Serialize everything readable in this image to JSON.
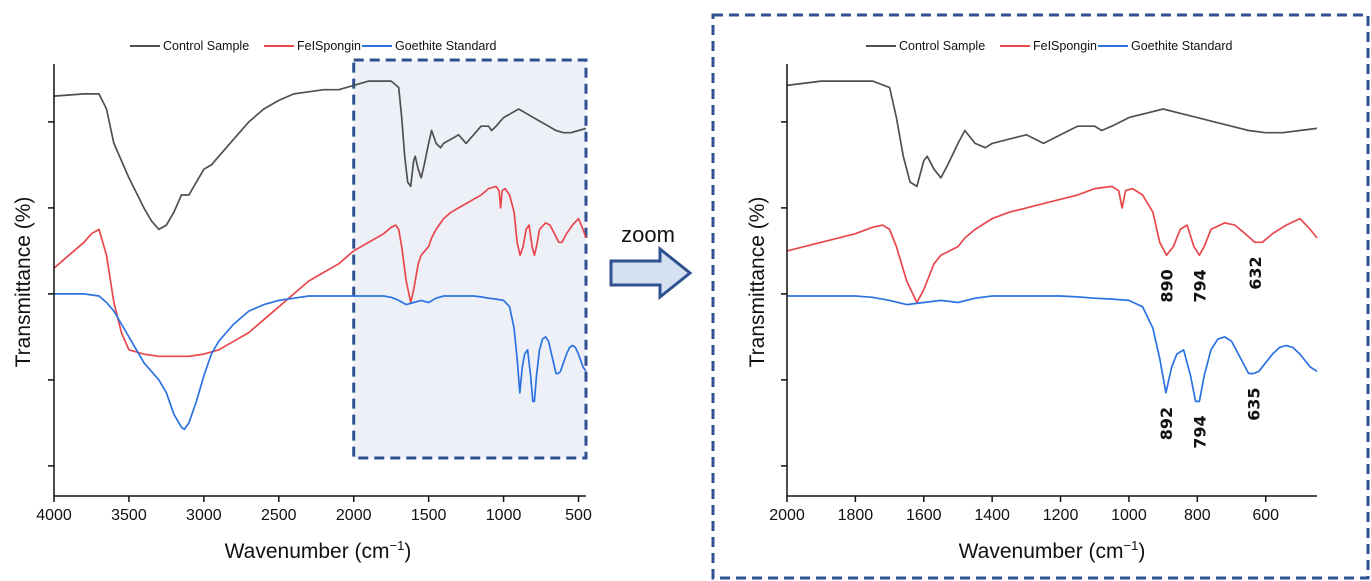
{
  "figure": {
    "zoom_label": "zoom",
    "colors": {
      "control": "#505050",
      "fe_spongin": "#e8474b",
      "goethite": "#2b73e0",
      "frame": "#2f5190",
      "highlight_fill": "#eef0f8",
      "arrow_fill": "#d5e0f1",
      "arrow_stroke": "#2f5190"
    }
  },
  "chart_data": [
    {
      "type": "line",
      "title": "",
      "xlabel": "Wavenumber (cm",
      "xlabel_superscript": "−1",
      "xlabel_close": ")",
      "ylabel": "Transmittance (%)",
      "xlim": [
        4000,
        450
      ],
      "x_reversed": true,
      "y_units": "relative transmittance, arbitrary (offset stacked spectra)",
      "ylim": [
        0,
        1
      ],
      "x_ticks": [
        4000,
        3500,
        3000,
        2500,
        2000,
        1500,
        1000,
        500
      ],
      "x_tick_labels": [
        "4000",
        "3500",
        "3000",
        "2500",
        "2000",
        "1500",
        "1000",
        "500"
      ],
      "y_tick_positions": [
        0.07,
        0.27,
        0.47,
        0.67,
        0.87
      ],
      "grid": false,
      "legend_position": "top",
      "highlight_region": [
        2000,
        450
      ],
      "series": [
        {
          "name": "Control Sample",
          "color_key": "control",
          "points": [
            [
              4000,
              0.93
            ],
            [
              3800,
              0.935
            ],
            [
              3700,
              0.935
            ],
            [
              3650,
              0.9
            ],
            [
              3600,
              0.82
            ],
            [
              3500,
              0.74
            ],
            [
              3400,
              0.67
            ],
            [
              3350,
              0.64
            ],
            [
              3300,
              0.62
            ],
            [
              3250,
              0.63
            ],
            [
              3200,
              0.66
            ],
            [
              3150,
              0.7
            ],
            [
              3100,
              0.7
            ],
            [
              3050,
              0.73
            ],
            [
              3000,
              0.76
            ],
            [
              2950,
              0.77
            ],
            [
              2900,
              0.79
            ],
            [
              2800,
              0.83
            ],
            [
              2700,
              0.87
            ],
            [
              2600,
              0.9
            ],
            [
              2500,
              0.92
            ],
            [
              2400,
              0.935
            ],
            [
              2300,
              0.94
            ],
            [
              2200,
              0.945
            ],
            [
              2100,
              0.945
            ],
            [
              2000,
              0.955
            ],
            [
              1900,
              0.965
            ],
            [
              1800,
              0.965
            ],
            [
              1750,
              0.965
            ],
            [
              1700,
              0.95
            ],
            [
              1680,
              0.88
            ],
            [
              1660,
              0.79
            ],
            [
              1640,
              0.73
            ],
            [
              1620,
              0.72
            ],
            [
              1600,
              0.78
            ],
            [
              1590,
              0.79
            ],
            [
              1570,
              0.76
            ],
            [
              1550,
              0.74
            ],
            [
              1530,
              0.77
            ],
            [
              1500,
              0.82
            ],
            [
              1480,
              0.85
            ],
            [
              1450,
              0.82
            ],
            [
              1420,
              0.81
            ],
            [
              1400,
              0.82
            ],
            [
              1350,
              0.83
            ],
            [
              1300,
              0.84
            ],
            [
              1250,
              0.82
            ],
            [
              1200,
              0.84
            ],
            [
              1150,
              0.86
            ],
            [
              1100,
              0.86
            ],
            [
              1080,
              0.85
            ],
            [
              1050,
              0.86
            ],
            [
              1000,
              0.88
            ],
            [
              950,
              0.89
            ],
            [
              900,
              0.9
            ],
            [
              850,
              0.89
            ],
            [
              800,
              0.88
            ],
            [
              750,
              0.87
            ],
            [
              700,
              0.86
            ],
            [
              650,
              0.85
            ],
            [
              600,
              0.845
            ],
            [
              550,
              0.845
            ],
            [
              500,
              0.85
            ],
            [
              450,
              0.855
            ]
          ]
        },
        {
          "name": "FeISpongin",
          "color_key": "fe_spongin",
          "points": [
            [
              4000,
              0.53
            ],
            [
              3900,
              0.56
            ],
            [
              3800,
              0.59
            ],
            [
              3750,
              0.61
            ],
            [
              3700,
              0.62
            ],
            [
              3650,
              0.56
            ],
            [
              3600,
              0.45
            ],
            [
              3550,
              0.38
            ],
            [
              3500,
              0.34
            ],
            [
              3400,
              0.33
            ],
            [
              3300,
              0.325
            ],
            [
              3200,
              0.325
            ],
            [
              3100,
              0.325
            ],
            [
              3000,
              0.33
            ],
            [
              2900,
              0.34
            ],
            [
              2800,
              0.36
            ],
            [
              2700,
              0.38
            ],
            [
              2600,
              0.41
            ],
            [
              2500,
              0.44
            ],
            [
              2400,
              0.47
            ],
            [
              2300,
              0.5
            ],
            [
              2200,
              0.52
            ],
            [
              2100,
              0.54
            ],
            [
              2000,
              0.57
            ],
            [
              1900,
              0.59
            ],
            [
              1800,
              0.61
            ],
            [
              1750,
              0.625
            ],
            [
              1720,
              0.63
            ],
            [
              1700,
              0.62
            ],
            [
              1680,
              0.58
            ],
            [
              1650,
              0.5
            ],
            [
              1620,
              0.45
            ],
            [
              1600,
              0.48
            ],
            [
              1570,
              0.54
            ],
            [
              1550,
              0.56
            ],
            [
              1500,
              0.58
            ],
            [
              1480,
              0.6
            ],
            [
              1450,
              0.62
            ],
            [
              1400,
              0.645
            ],
            [
              1350,
              0.66
            ],
            [
              1300,
              0.67
            ],
            [
              1250,
              0.68
            ],
            [
              1200,
              0.69
            ],
            [
              1150,
              0.7
            ],
            [
              1100,
              0.715
            ],
            [
              1050,
              0.72
            ],
            [
              1030,
              0.71
            ],
            [
              1020,
              0.67
            ],
            [
              1010,
              0.71
            ],
            [
              990,
              0.715
            ],
            [
              960,
              0.7
            ],
            [
              930,
              0.66
            ],
            [
              910,
              0.59
            ],
            [
              890,
              0.56
            ],
            [
              870,
              0.58
            ],
            [
              850,
              0.62
            ],
            [
              830,
              0.63
            ],
            [
              810,
              0.58
            ],
            [
              794,
              0.56
            ],
            [
              780,
              0.58
            ],
            [
              760,
              0.62
            ],
            [
              720,
              0.635
            ],
            [
              690,
              0.63
            ],
            [
              660,
              0.61
            ],
            [
              632,
              0.59
            ],
            [
              610,
              0.59
            ],
            [
              580,
              0.61
            ],
            [
              540,
              0.63
            ],
            [
              500,
              0.645
            ],
            [
              470,
              0.62
            ],
            [
              450,
              0.6
            ]
          ]
        },
        {
          "name": "Goethite Standard",
          "color_key": "goethite",
          "points": [
            [
              4000,
              0.47
            ],
            [
              3900,
              0.47
            ],
            [
              3800,
              0.47
            ],
            [
              3700,
              0.465
            ],
            [
              3650,
              0.45
            ],
            [
              3600,
              0.43
            ],
            [
              3550,
              0.4
            ],
            [
              3500,
              0.37
            ],
            [
              3450,
              0.34
            ],
            [
              3400,
              0.31
            ],
            [
              3350,
              0.29
            ],
            [
              3300,
              0.27
            ],
            [
              3250,
              0.24
            ],
            [
              3200,
              0.19
            ],
            [
              3150,
              0.16
            ],
            [
              3130,
              0.155
            ],
            [
              3100,
              0.17
            ],
            [
              3050,
              0.22
            ],
            [
              3000,
              0.28
            ],
            [
              2950,
              0.33
            ],
            [
              2900,
              0.36
            ],
            [
              2800,
              0.4
            ],
            [
              2700,
              0.43
            ],
            [
              2600,
              0.445
            ],
            [
              2500,
              0.455
            ],
            [
              2400,
              0.46
            ],
            [
              2300,
              0.465
            ],
            [
              2200,
              0.465
            ],
            [
              2100,
              0.465
            ],
            [
              2000,
              0.465
            ],
            [
              1900,
              0.465
            ],
            [
              1800,
              0.465
            ],
            [
              1750,
              0.462
            ],
            [
              1700,
              0.455
            ],
            [
              1650,
              0.445
            ],
            [
              1600,
              0.45
            ],
            [
              1550,
              0.455
            ],
            [
              1500,
              0.45
            ],
            [
              1450,
              0.46
            ],
            [
              1400,
              0.465
            ],
            [
              1300,
              0.465
            ],
            [
              1250,
              0.465
            ],
            [
              1200,
              0.465
            ],
            [
              1150,
              0.463
            ],
            [
              1100,
              0.46
            ],
            [
              1050,
              0.458
            ],
            [
              1000,
              0.455
            ],
            [
              960,
              0.44
            ],
            [
              930,
              0.39
            ],
            [
              910,
              0.32
            ],
            [
              892,
              0.24
            ],
            [
              875,
              0.3
            ],
            [
              860,
              0.33
            ],
            [
              840,
              0.34
            ],
            [
              820,
              0.28
            ],
            [
              805,
              0.22
            ],
            [
              794,
              0.22
            ],
            [
              780,
              0.28
            ],
            [
              760,
              0.34
            ],
            [
              740,
              0.365
            ],
            [
              720,
              0.37
            ],
            [
              700,
              0.36
            ],
            [
              680,
              0.33
            ],
            [
              660,
              0.3
            ],
            [
              650,
              0.285
            ],
            [
              635,
              0.285
            ],
            [
              620,
              0.29
            ],
            [
              600,
              0.31
            ],
            [
              580,
              0.33
            ],
            [
              560,
              0.345
            ],
            [
              540,
              0.35
            ],
            [
              520,
              0.345
            ],
            [
              500,
              0.33
            ],
            [
              470,
              0.3
            ],
            [
              450,
              0.29
            ]
          ]
        }
      ],
      "annotations": []
    },
    {
      "type": "line",
      "title": "",
      "xlabel": "Wavenumber (cm",
      "xlabel_superscript": "−1",
      "xlabel_close": ")",
      "ylabel": "Transmittance (%)",
      "xlim": [
        2000,
        450
      ],
      "x_reversed": true,
      "y_units": "relative transmittance, arbitrary (offset stacked spectra)",
      "ylim": [
        0,
        1
      ],
      "x_ticks": [
        2000,
        1800,
        1600,
        1400,
        1200,
        1000,
        800,
        600
      ],
      "x_tick_labels": [
        "2000",
        "1800",
        "1600",
        "1400",
        "1200",
        "1000",
        "800",
        "600"
      ],
      "y_tick_positions": [
        0.07,
        0.27,
        0.47,
        0.67,
        0.87
      ],
      "grid": false,
      "legend_position": "top",
      "series_from_chart": 0,
      "annotations": [
        {
          "text": "890",
          "x": 890,
          "series": "FeISpongin"
        },
        {
          "text": "794",
          "x": 794,
          "series": "FeISpongin"
        },
        {
          "text": "632",
          "x": 632,
          "series": "FeISpongin"
        },
        {
          "text": "892",
          "x": 892,
          "series": "Goethite Standard"
        },
        {
          "text": "794",
          "x": 794,
          "series": "Goethite Standard"
        },
        {
          "text": "635",
          "x": 635,
          "series": "Goethite Standard"
        }
      ]
    }
  ]
}
